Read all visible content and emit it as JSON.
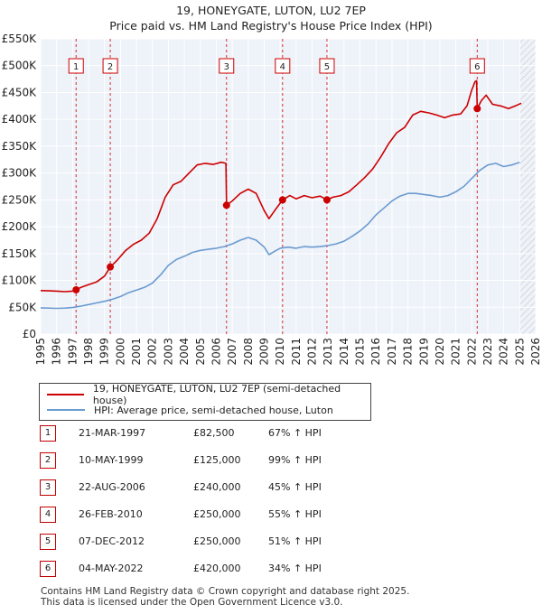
{
  "header": {
    "title": "19, HONEYGATE, LUTON, LU2 7EP",
    "subtitle": "Price paid vs. HM Land Registry's House Price Index (HPI)"
  },
  "colors": {
    "property": "#cc0000",
    "hpi": "#6b9bd0",
    "grid": "#ffffff",
    "plot_bg": "#eef2f9",
    "hatch": "#c8c8c8"
  },
  "chart_data": {
    "type": "line",
    "title": "19, HONEYGATE, LUTON, LU2 7EP",
    "subtitle": "Price paid vs. HM Land Registry's House Price Index (HPI)",
    "xlabel": "",
    "ylabel": "",
    "xlim": [
      1995,
      2026
    ],
    "ylim": [
      0,
      550000
    ],
    "x_ticks": [
      1995,
      1996,
      1997,
      1998,
      1999,
      2000,
      2001,
      2002,
      2003,
      2004,
      2005,
      2006,
      2007,
      2008,
      2009,
      2010,
      2011,
      2012,
      2013,
      2014,
      2015,
      2016,
      2017,
      2018,
      2019,
      2020,
      2021,
      2022,
      2023,
      2024,
      2025,
      2026
    ],
    "y_ticks": [
      0,
      50000,
      100000,
      150000,
      200000,
      250000,
      300000,
      350000,
      400000,
      450000,
      500000,
      550000
    ],
    "y_tick_labels": [
      "£0",
      "£50K",
      "£100K",
      "£150K",
      "£200K",
      "£250K",
      "£300K",
      "£350K",
      "£400K",
      "£450K",
      "£500K",
      "£550K"
    ],
    "forecast_start": 2025.0,
    "series": [
      {
        "name": "19, HONEYGATE, LUTON, LU2 7EP (semi-detached house)",
        "color": "#cc0000",
        "points": [
          [
            1995.0,
            81000
          ],
          [
            1995.5,
            80500
          ],
          [
            1996.0,
            80000
          ],
          [
            1996.5,
            79000
          ],
          [
            1997.0,
            80000
          ],
          [
            1997.22,
            82500
          ],
          [
            1997.6,
            88000
          ],
          [
            1998.0,
            92000
          ],
          [
            1998.5,
            97000
          ],
          [
            1999.0,
            108000
          ],
          [
            1999.36,
            125000
          ],
          [
            1999.8,
            138000
          ],
          [
            2000.3,
            155000
          ],
          [
            2000.8,
            167000
          ],
          [
            2001.3,
            175000
          ],
          [
            2001.8,
            188000
          ],
          [
            2002.3,
            215000
          ],
          [
            2002.8,
            255000
          ],
          [
            2003.3,
            278000
          ],
          [
            2003.8,
            285000
          ],
          [
            2004.3,
            300000
          ],
          [
            2004.8,
            315000
          ],
          [
            2005.3,
            318000
          ],
          [
            2005.8,
            316000
          ],
          [
            2006.3,
            320000
          ],
          [
            2006.6,
            318000
          ],
          [
            2006.64,
            240000
          ],
          [
            2007.0,
            248000
          ],
          [
            2007.5,
            262000
          ],
          [
            2008.0,
            270000
          ],
          [
            2008.5,
            262000
          ],
          [
            2009.0,
            230000
          ],
          [
            2009.3,
            215000
          ],
          [
            2009.7,
            232000
          ],
          [
            2010.15,
            250000
          ],
          [
            2010.6,
            258000
          ],
          [
            2011.0,
            252000
          ],
          [
            2011.5,
            258000
          ],
          [
            2012.0,
            254000
          ],
          [
            2012.5,
            257000
          ],
          [
            2012.93,
            250000
          ],
          [
            2013.3,
            255000
          ],
          [
            2013.8,
            258000
          ],
          [
            2014.3,
            265000
          ],
          [
            2014.8,
            278000
          ],
          [
            2015.3,
            292000
          ],
          [
            2015.8,
            308000
          ],
          [
            2016.3,
            330000
          ],
          [
            2016.8,
            355000
          ],
          [
            2017.3,
            375000
          ],
          [
            2017.8,
            385000
          ],
          [
            2018.3,
            408000
          ],
          [
            2018.8,
            415000
          ],
          [
            2019.3,
            412000
          ],
          [
            2019.8,
            408000
          ],
          [
            2020.3,
            403000
          ],
          [
            2020.8,
            408000
          ],
          [
            2021.3,
            410000
          ],
          [
            2021.7,
            425000
          ],
          [
            2022.0,
            455000
          ],
          [
            2022.2,
            470000
          ],
          [
            2022.3,
            472000
          ],
          [
            2022.34,
            420000
          ],
          [
            2022.6,
            435000
          ],
          [
            2022.9,
            445000
          ],
          [
            2023.3,
            428000
          ],
          [
            2023.8,
            425000
          ],
          [
            2024.3,
            420000
          ],
          [
            2024.8,
            426000
          ],
          [
            2025.1,
            430000
          ]
        ]
      },
      {
        "name": "HPI: Average price, semi-detached house, Luton",
        "color": "#6b9bd0",
        "points": [
          [
            1995.0,
            49000
          ],
          [
            1995.5,
            48500
          ],
          [
            1996.0,
            48000
          ],
          [
            1996.5,
            48500
          ],
          [
            1997.0,
            49500
          ],
          [
            1997.5,
            52000
          ],
          [
            1998.0,
            55000
          ],
          [
            1998.5,
            58000
          ],
          [
            1999.0,
            61000
          ],
          [
            1999.5,
            65000
          ],
          [
            2000.0,
            70000
          ],
          [
            2000.5,
            77000
          ],
          [
            2001.0,
            82000
          ],
          [
            2001.5,
            87000
          ],
          [
            2002.0,
            95000
          ],
          [
            2002.5,
            110000
          ],
          [
            2003.0,
            128000
          ],
          [
            2003.5,
            139000
          ],
          [
            2004.0,
            145000
          ],
          [
            2004.5,
            152000
          ],
          [
            2005.0,
            156000
          ],
          [
            2005.5,
            158000
          ],
          [
            2006.0,
            160000
          ],
          [
            2006.5,
            163000
          ],
          [
            2007.0,
            168000
          ],
          [
            2007.5,
            175000
          ],
          [
            2008.0,
            180000
          ],
          [
            2008.5,
            175000
          ],
          [
            2009.0,
            162000
          ],
          [
            2009.3,
            148000
          ],
          [
            2009.7,
            155000
          ],
          [
            2010.0,
            160000
          ],
          [
            2010.5,
            162000
          ],
          [
            2011.0,
            160000
          ],
          [
            2011.5,
            163000
          ],
          [
            2012.0,
            162000
          ],
          [
            2012.5,
            163000
          ],
          [
            2013.0,
            165000
          ],
          [
            2013.5,
            168000
          ],
          [
            2014.0,
            173000
          ],
          [
            2014.5,
            182000
          ],
          [
            2015.0,
            192000
          ],
          [
            2015.5,
            205000
          ],
          [
            2016.0,
            222000
          ],
          [
            2016.5,
            235000
          ],
          [
            2017.0,
            248000
          ],
          [
            2017.5,
            257000
          ],
          [
            2018.0,
            262000
          ],
          [
            2018.5,
            262000
          ],
          [
            2019.0,
            260000
          ],
          [
            2019.5,
            258000
          ],
          [
            2020.0,
            255000
          ],
          [
            2020.5,
            258000
          ],
          [
            2021.0,
            265000
          ],
          [
            2021.5,
            275000
          ],
          [
            2022.0,
            290000
          ],
          [
            2022.5,
            305000
          ],
          [
            2023.0,
            315000
          ],
          [
            2023.5,
            318000
          ],
          [
            2024.0,
            312000
          ],
          [
            2024.5,
            315000
          ],
          [
            2025.0,
            320000
          ]
        ]
      }
    ],
    "sale_markers": [
      {
        "n": "1",
        "x": 1997.22,
        "y": 82500
      },
      {
        "n": "2",
        "x": 1999.36,
        "y": 125000
      },
      {
        "n": "3",
        "x": 2006.64,
        "y": 240000
      },
      {
        "n": "4",
        "x": 2010.15,
        "y": 250000
      },
      {
        "n": "5",
        "x": 2012.93,
        "y": 250000
      },
      {
        "n": "6",
        "x": 2022.34,
        "y": 420000
      }
    ]
  },
  "legend": {
    "property_label": "19, HONEYGATE, LUTON, LU2 7EP (semi-detached house)",
    "hpi_label": "HPI: Average price, semi-detached house, Luton"
  },
  "sales": [
    {
      "num": "1",
      "date": "21-MAR-1997",
      "price": "£82,500",
      "pct": "67% ↑ HPI"
    },
    {
      "num": "2",
      "date": "10-MAY-1999",
      "price": "£125,000",
      "pct": "99% ↑ HPI"
    },
    {
      "num": "3",
      "date": "22-AUG-2006",
      "price": "£240,000",
      "pct": "45% ↑ HPI"
    },
    {
      "num": "4",
      "date": "26-FEB-2010",
      "price": "£250,000",
      "pct": "55% ↑ HPI"
    },
    {
      "num": "5",
      "date": "07-DEC-2012",
      "price": "£250,000",
      "pct": "51% ↑ HPI"
    },
    {
      "num": "6",
      "date": "04-MAY-2022",
      "price": "£420,000",
      "pct": "34% ↑ HPI"
    }
  ],
  "footer": {
    "line1": "Contains HM Land Registry data © Crown copyright and database right 2025.",
    "line2": "This data is licensed under the Open Government Licence v3.0."
  }
}
